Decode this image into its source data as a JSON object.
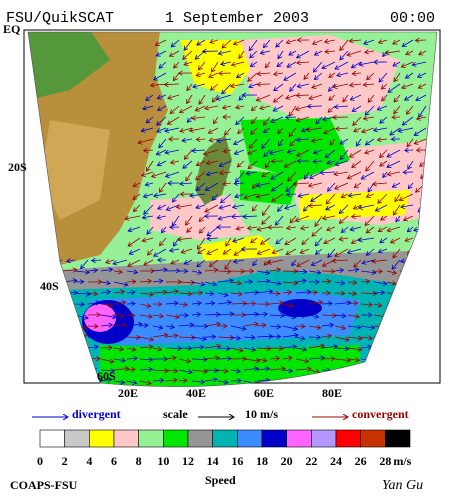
{
  "header": {
    "title": "FSU/QuikSCAT",
    "date": "1 September 2003",
    "time": "00:00"
  },
  "map": {
    "lat_labels": [
      "EQ",
      "20S",
      "40S",
      "60S"
    ],
    "lon_labels": [
      "20E",
      "40E",
      "60E",
      "80E"
    ]
  },
  "legend": {
    "divergent": "divergent",
    "scale": "scale",
    "scale_value": "10 m/s",
    "convergent": "convergent"
  },
  "colorbar": {
    "labels": [
      0,
      2,
      4,
      6,
      8,
      10,
      12,
      14,
      16,
      18,
      20,
      22,
      24,
      26,
      28
    ],
    "unit": "m/s",
    "title": "Speed",
    "colors": [
      "#ffffff",
      "#c8c8c8",
      "#ffff00",
      "#ffc8c8",
      "#96f096",
      "#00e600",
      "#969696",
      "#00b4b4",
      "#3c8cff",
      "#0000c8",
      "#ff64ff",
      "#b496ff",
      "#ff0000",
      "#c83200",
      "#000000"
    ]
  },
  "footer": {
    "left": "COAPS-FSU",
    "right": "Yan Gu"
  }
}
